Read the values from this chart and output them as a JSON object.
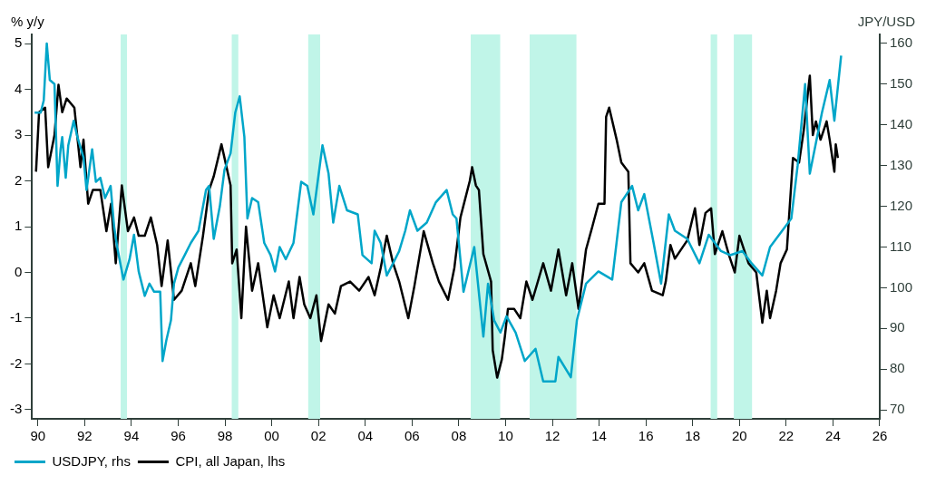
{
  "chart_data": {
    "type": "line",
    "ylabel": "% y/y",
    "y2label": "JPY/USD",
    "xlim": [
      1989.75,
      2026
    ],
    "xticks": [
      {
        "value": 1990,
        "label": "90"
      },
      {
        "value": 1992,
        "label": "92"
      },
      {
        "value": 1994,
        "label": "94"
      },
      {
        "value": 1996,
        "label": "96"
      },
      {
        "value": 1998,
        "label": "98"
      },
      {
        "value": 2000,
        "label": "00"
      },
      {
        "value": 2002,
        "label": "02"
      },
      {
        "value": 2004,
        "label": "04"
      },
      {
        "value": 2006,
        "label": "06"
      },
      {
        "value": 2008,
        "label": "08"
      },
      {
        "value": 2010,
        "label": "10"
      },
      {
        "value": 2012,
        "label": "12"
      },
      {
        "value": 2014,
        "label": "14"
      },
      {
        "value": 2016,
        "label": "16"
      },
      {
        "value": 2018,
        "label": "18"
      },
      {
        "value": 2020,
        "label": "20"
      },
      {
        "value": 2022,
        "label": "22"
      },
      {
        "value": 2024,
        "label": "24"
      },
      {
        "value": 2026,
        "label": "26"
      }
    ],
    "ylim": [
      -3.2,
      5.2
    ],
    "yticks": [
      -3,
      -2,
      -1,
      0,
      1,
      2,
      3,
      4,
      5
    ],
    "y2lim": [
      67.8,
      162.2
    ],
    "y2ticks": [
      70,
      80,
      90,
      100,
      110,
      120,
      130,
      140,
      150,
      160
    ],
    "grid": false,
    "legend": "bottom left",
    "marker": "none",
    "line_style": "solid",
    "bands": [
      {
        "axis": "x",
        "from": 1993.54,
        "to": 1993.81,
        "color": "#c0f5e8"
      },
      {
        "axis": "x",
        "from": 1998.29,
        "to": 1998.57,
        "color": "#c0f5e8"
      },
      {
        "axis": "x",
        "from": 2001.56,
        "to": 2002.07,
        "color": "#c0f5e8"
      },
      {
        "axis": "x",
        "from": 2008.51,
        "to": 2009.77,
        "color": "#c0f5e8"
      },
      {
        "axis": "x",
        "from": 2011.03,
        "to": 2013.03,
        "color": "#c0f5e8"
      },
      {
        "axis": "x",
        "from": 2018.77,
        "to": 2019.05,
        "color": "#c0f5e8"
      },
      {
        "axis": "x",
        "from": 2019.76,
        "to": 2020.54,
        "color": "#c0f5e8"
      }
    ],
    "series": [
      {
        "name": "USDJPY, rhs",
        "color": "#00a6c9",
        "axis": "y2",
        "x": [
          1989.86,
          1990.12,
          1990.25,
          1990.38,
          1990.51,
          1990.71,
          1990.84,
          1990.97,
          1991.04,
          1991.19,
          1991.3,
          1991.53,
          1991.69,
          1991.95,
          1992.08,
          1992.32,
          1992.48,
          1992.67,
          1992.87,
          1993.11,
          1993.26,
          1993.39,
          1993.66,
          1993.92,
          1994.11,
          1994.31,
          1994.57,
          1994.77,
          1994.97,
          1995.23,
          1995.33,
          1995.49,
          1995.69,
          1995.82,
          1996.01,
          1996.28,
          1996.54,
          1996.87,
          1997.19,
          1997.32,
          1997.52,
          1997.78,
          1997.98,
          1998.24,
          1998.44,
          1998.63,
          1998.83,
          1998.96,
          1999.16,
          1999.42,
          1999.68,
          1999.95,
          2000.14,
          2000.34,
          2000.6,
          2000.93,
          2001.26,
          2001.52,
          2001.78,
          2002.17,
          2002.43,
          2002.63,
          2002.89,
          2003.22,
          2003.68,
          2003.88,
          2004.27,
          2004.4,
          2004.66,
          2004.92,
          2005.19,
          2005.45,
          2005.71,
          2005.91,
          2006.23,
          2006.63,
          2007.02,
          2007.48,
          2007.74,
          2007.9,
          2008.2,
          2008.66,
          2009.05,
          2009.25,
          2009.51,
          2009.78,
          2010.04,
          2010.43,
          2010.82,
          2011.28,
          2011.61,
          2012.13,
          2012.26,
          2012.79,
          2013.05,
          2013.44,
          2013.97,
          2014.56,
          2014.95,
          2015.41,
          2015.67,
          2015.93,
          2016.33,
          2016.65,
          2016.98,
          2017.24,
          2017.77,
          2018.29,
          2018.69,
          2019.21,
          2019.6,
          2020.13,
          2020.52,
          2020.98,
          2021.31,
          2021.83,
          2022.22,
          2022.49,
          2022.81,
          2023.01,
          2023.53,
          2023.86,
          2024.06,
          2024.35
        ],
        "values": [
          143,
          143,
          146,
          160,
          151,
          150,
          125,
          134,
          137,
          127,
          135,
          141,
          137,
          132,
          124,
          134,
          126,
          127,
          122,
          125,
          115,
          110,
          102,
          107,
          113,
          104,
          98,
          101,
          99,
          99,
          82,
          87,
          92,
          101,
          105,
          108,
          111,
          114,
          124,
          125,
          112,
          120,
          129,
          133,
          143,
          147,
          137,
          117,
          122,
          121,
          111,
          108,
          104,
          110,
          107,
          111,
          126,
          125,
          118,
          135,
          128,
          116,
          125,
          119,
          118,
          108,
          106,
          114,
          111,
          103,
          106,
          109,
          114,
          119,
          114,
          116,
          121,
          124,
          118,
          117,
          99,
          110,
          88,
          101,
          92,
          89,
          93,
          89,
          82,
          85,
          77,
          77,
          83,
          78,
          92,
          101,
          104,
          102,
          121,
          125,
          119,
          123,
          111,
          101,
          118,
          114,
          112,
          106,
          113,
          109,
          108,
          109,
          106,
          103,
          110,
          114,
          117,
          130,
          150,
          128,
          143,
          151,
          141,
          157
        ]
      },
      {
        "name": "CPI, all Japan, lhs",
        "color": "#000000",
        "axis": "y",
        "x": [
          1989.92,
          1990.05,
          1990.31,
          1990.44,
          1990.71,
          1990.88,
          1991.04,
          1991.23,
          1991.56,
          1991.82,
          1991.95,
          1992.15,
          1992.35,
          1992.67,
          1992.93,
          1993.13,
          1993.33,
          1993.59,
          1993.85,
          1994.11,
          1994.31,
          1994.57,
          1994.83,
          1995.1,
          1995.29,
          1995.55,
          1995.82,
          1996.15,
          1996.54,
          1996.73,
          1997.06,
          1997.32,
          1997.52,
          1997.85,
          1998.24,
          1998.31,
          1998.5,
          1998.7,
          1998.9,
          1999.16,
          1999.42,
          1999.81,
          2000.08,
          2000.34,
          2000.73,
          2000.93,
          2001.19,
          2001.39,
          2001.65,
          2001.91,
          2002.11,
          2002.43,
          2002.7,
          2002.96,
          2003.35,
          2003.74,
          2004.14,
          2004.4,
          2004.66,
          2004.92,
          2005.19,
          2005.45,
          2005.84,
          2006.1,
          2006.5,
          2006.89,
          2007.15,
          2007.54,
          2007.81,
          2008.07,
          2008.47,
          2008.57,
          2008.73,
          2008.86,
          2009.05,
          2009.38,
          2009.45,
          2009.64,
          2009.84,
          2009.97,
          2010.1,
          2010.37,
          2010.63,
          2010.89,
          2011.15,
          2011.61,
          2011.94,
          2012.26,
          2012.59,
          2012.85,
          2013.12,
          2013.44,
          2013.71,
          2013.97,
          2014.23,
          2014.3,
          2014.43,
          2014.75,
          2014.95,
          2015.25,
          2015.34,
          2015.67,
          2015.93,
          2016.26,
          2016.72,
          2016.85,
          2017.05,
          2017.24,
          2017.77,
          2018.1,
          2018.29,
          2018.55,
          2018.79,
          2018.95,
          2019.27,
          2019.54,
          2019.8,
          2020,
          2020.39,
          2020.72,
          2020.91,
          2020.98,
          2021.17,
          2021.31,
          2021.57,
          2021.76,
          2022.03,
          2022.29,
          2022.55,
          2022.75,
          2023.01,
          2023.14,
          2023.27,
          2023.47,
          2023.73,
          2023.86,
          2024.06,
          2024.12,
          2024.21
        ],
        "values": [
          2.2,
          3.5,
          3.6,
          2.3,
          3,
          4.1,
          3.5,
          3.8,
          3.6,
          2.3,
          2.9,
          1.5,
          1.8,
          1.8,
          0.9,
          1.5,
          0.2,
          1.9,
          0.9,
          1.2,
          0.8,
          0.8,
          1.2,
          0.6,
          -0.3,
          0.7,
          -0.6,
          -0.4,
          0.2,
          -0.3,
          0.8,
          1.8,
          2.1,
          2.8,
          1.9,
          0.2,
          0.5,
          -1,
          1,
          -0.4,
          0.2,
          -1.2,
          -0.5,
          -1,
          -0.2,
          -1,
          -0.1,
          -0.7,
          -1,
          -0.5,
          -1.5,
          -0.7,
          -0.9,
          -0.3,
          -0.2,
          -0.4,
          -0.1,
          -0.5,
          0.1,
          0.8,
          0.2,
          -0.2,
          -1,
          -0.3,
          0.9,
          0.2,
          -0.2,
          -0.6,
          0.1,
          1.2,
          2,
          2.3,
          1.9,
          1.8,
          0.4,
          -0.2,
          -1.7,
          -2.3,
          -1.9,
          -1.4,
          -0.8,
          -0.8,
          -1,
          -0.2,
          -0.6,
          0.2,
          -0.4,
          0.5,
          -0.5,
          0.2,
          -0.8,
          0.5,
          1,
          1.5,
          1.5,
          3.4,
          3.6,
          2.9,
          2.4,
          2.2,
          0.2,
          0,
          0.2,
          -0.4,
          -0.5,
          -0.2,
          0.6,
          0.3,
          0.7,
          1.4,
          0.6,
          1.3,
          1.4,
          0.4,
          0.9,
          0.4,
          0,
          0.8,
          0.2,
          0,
          -0.8,
          -1.1,
          -0.4,
          -1,
          -0.4,
          0.2,
          0.5,
          2.5,
          2.4,
          3.1,
          4.3,
          3,
          3.3,
          2.9,
          3.3,
          2.9,
          2.2,
          2.8,
          2.5
        ]
      }
    ]
  }
}
